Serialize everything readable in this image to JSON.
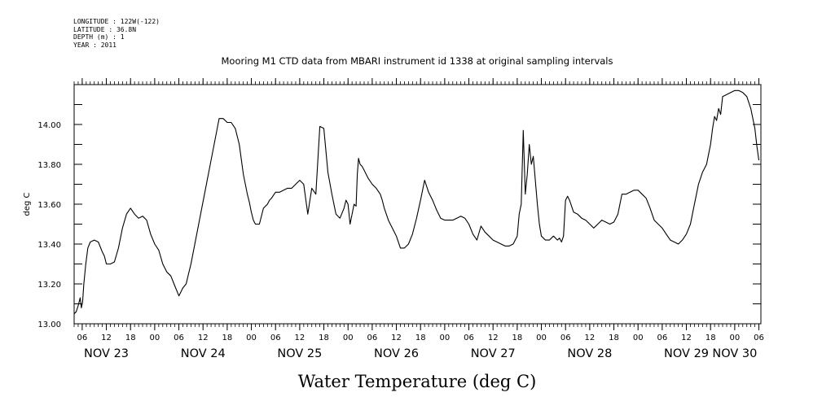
{
  "metadata_lines": [
    "LONGITUDE : 122W(-122)",
    "LATITUDE : 36.8N",
    "DEPTH (m) : 1",
    "YEAR : 2011"
  ],
  "chart_data": {
    "type": "line",
    "title": "Mooring M1 CTD data from MBARI instrument id 1338 at original sampling intervals",
    "xlabel": "Water Temperature (deg C)",
    "ylabel": "deg C",
    "ylim": [
      13.0,
      14.2
    ],
    "yticks": [
      13.0,
      13.2,
      13.4,
      13.6,
      13.8,
      14.0
    ],
    "ytick_labels": [
      "13.00",
      "13.20",
      "13.40",
      "13.60",
      "13.80",
      "14.00"
    ],
    "x_units": "hours since Nov 23 00:00, 2011",
    "xlim": [
      4.0,
      174.5
    ],
    "hour_ticks": [
      6,
      12,
      18,
      24,
      30,
      36,
      42,
      48,
      54,
      60,
      66,
      72,
      78,
      84,
      90,
      96,
      102,
      108,
      114,
      120,
      126,
      132,
      138,
      144,
      150,
      156,
      162,
      168,
      174
    ],
    "hour_tick_labels": [
      "06",
      "12",
      "18",
      "00",
      "06",
      "12",
      "18",
      "00",
      "06",
      "12",
      "18",
      "00",
      "06",
      "12",
      "18",
      "00",
      "06",
      "12",
      "18",
      "00",
      "06",
      "12",
      "18",
      "00",
      "06",
      "12",
      "18",
      "00",
      "06"
    ],
    "date_labels": [
      {
        "label": "NOV 23",
        "hour": 12
      },
      {
        "label": "NOV 24",
        "hour": 36
      },
      {
        "label": "NOV 25",
        "hour": 60
      },
      {
        "label": "NOV 26",
        "hour": 84
      },
      {
        "label": "NOV 27",
        "hour": 108
      },
      {
        "label": "NOV 28",
        "hour": 132
      },
      {
        "label": "NOV 29",
        "hour": 156
      },
      {
        "label": "NOV 30",
        "hour": 168
      }
    ],
    "grid": false,
    "series": [
      {
        "name": "",
        "color": "#000000",
        "x": [
          4.0,
          4.5,
          5.0,
          5.5,
          5.8,
          6.1,
          6.4,
          6.9,
          7.4,
          8.0,
          9.0,
          10.0,
          11.0,
          11.5,
          12.0,
          13.0,
          14.0,
          15.0,
          16.0,
          17.0,
          18.0,
          19.0,
          20.0,
          21.0,
          22.0,
          23.0,
          24.0,
          25.0,
          26.0,
          27.0,
          28.0,
          29.0,
          30.0,
          31.0,
          31.8,
          32.4,
          33.0,
          40.0,
          41.0,
          42.0,
          43.0,
          44.0,
          45.0,
          46.0,
          47.0,
          47.5,
          48.0,
          48.5,
          49.0,
          50.0,
          51.0,
          52.0,
          52.5,
          53.0,
          54.0,
          55.0,
          56.0,
          57.0,
          58.0,
          59.0,
          60.0,
          61.0,
          62.0,
          63.0,
          64.0,
          65.0,
          66.0,
          67.0,
          68.0,
          69.0,
          70.0,
          71.0,
          71.5,
          72.0,
          72.5,
          73.0,
          73.5,
          74.0,
          74.3,
          74.6,
          75.0,
          75.5,
          76.0,
          77.0,
          78.0,
          79.0,
          80.0,
          80.5,
          81.0,
          81.5,
          82.0,
          82.5,
          83.0,
          84.0,
          85.0,
          86.0,
          87.0,
          88.0,
          89.0,
          90.0,
          91.0,
          92.0,
          93.0,
          94.0,
          95.0,
          96.0,
          97.0,
          98.0,
          99.0,
          100.0,
          101.0,
          102.0,
          103.0,
          104.0,
          105.0,
          106.0,
          107.0,
          108.0,
          109.0,
          110.0,
          111.0,
          111.5,
          112.0,
          113.0,
          114.0,
          114.5,
          115.0,
          115.5,
          116.0,
          116.5,
          117.0,
          117.5,
          118.0,
          118.5,
          119.0,
          119.5,
          120.0,
          121.0,
          122.0,
          123.0,
          124.0,
          124.5,
          125.0,
          125.5,
          126.0,
          126.5,
          127.0,
          128.0,
          129.0,
          130.0,
          131.0,
          132.0,
          133.0,
          134.0,
          135.0,
          136.0,
          137.0,
          138.0,
          139.0,
          140.0,
          141.0,
          142.0,
          143.0,
          144.0,
          145.0,
          146.0,
          147.0,
          148.0,
          149.0,
          150.0,
          151.0,
          152.0,
          153.0,
          154.0,
          155.0,
          156.0,
          157.0,
          158.0,
          159.0,
          160.0,
          161.0,
          162.0,
          162.5,
          163.0,
          163.5,
          164.0,
          164.5,
          165.0,
          166.0,
          167.0,
          168.0,
          169.0,
          170.0,
          171.0,
          172.0,
          173.0,
          173.5,
          174.0
        ],
        "y": [
          13.05,
          13.06,
          13.09,
          13.13,
          13.08,
          13.11,
          13.2,
          13.3,
          13.38,
          13.41,
          13.42,
          13.41,
          13.36,
          13.34,
          13.3,
          13.3,
          13.31,
          13.38,
          13.48,
          13.55,
          13.58,
          13.55,
          13.53,
          13.54,
          13.52,
          13.45,
          13.4,
          13.37,
          13.3,
          13.26,
          13.24,
          13.19,
          13.14,
          13.18,
          13.2,
          13.25,
          13.3,
          14.03,
          14.03,
          14.01,
          14.01,
          13.98,
          13.9,
          13.75,
          13.65,
          13.61,
          13.56,
          13.52,
          13.5,
          13.5,
          13.58,
          13.6,
          13.62,
          13.63,
          13.66,
          13.66,
          13.67,
          13.68,
          13.68,
          13.7,
          13.72,
          13.7,
          13.55,
          13.68,
          13.65,
          13.99,
          13.98,
          13.76,
          13.65,
          13.55,
          13.53,
          13.58,
          13.62,
          13.6,
          13.5,
          13.55,
          13.6,
          13.59,
          13.75,
          13.83,
          13.8,
          13.79,
          13.77,
          13.73,
          13.7,
          13.68,
          13.65,
          13.62,
          13.58,
          13.55,
          13.52,
          13.5,
          13.48,
          13.44,
          13.38,
          13.38,
          13.4,
          13.45,
          13.53,
          13.62,
          13.72,
          13.66,
          13.62,
          13.57,
          13.53,
          13.52,
          13.52,
          13.52,
          13.53,
          13.54,
          13.53,
          13.5,
          13.45,
          13.42,
          13.49,
          13.46,
          13.44,
          13.42,
          13.41,
          13.4,
          13.39,
          13.39,
          13.39,
          13.4,
          13.44,
          13.55,
          13.6,
          13.97,
          13.65,
          13.75,
          13.9,
          13.8,
          13.84,
          13.72,
          13.6,
          13.5,
          13.44,
          13.42,
          13.42,
          13.44,
          13.42,
          13.43,
          13.41,
          13.44,
          13.62,
          13.64,
          13.62,
          13.56,
          13.55,
          13.53,
          13.52,
          13.5,
          13.48,
          13.5,
          13.52,
          13.51,
          13.5,
          13.51,
          13.55,
          13.65,
          13.65,
          13.66,
          13.67,
          13.67,
          13.65,
          13.63,
          13.58,
          13.52,
          13.5,
          13.48,
          13.45,
          13.42,
          13.41,
          13.4,
          13.42,
          13.45,
          13.5,
          13.6,
          13.7,
          13.76,
          13.8,
          13.9,
          13.98,
          14.04,
          14.02,
          14.08,
          14.05,
          14.14,
          14.15,
          14.16,
          14.17,
          14.17,
          14.16,
          14.14,
          14.08,
          13.98,
          13.89,
          13.82
        ]
      }
    ]
  }
}
